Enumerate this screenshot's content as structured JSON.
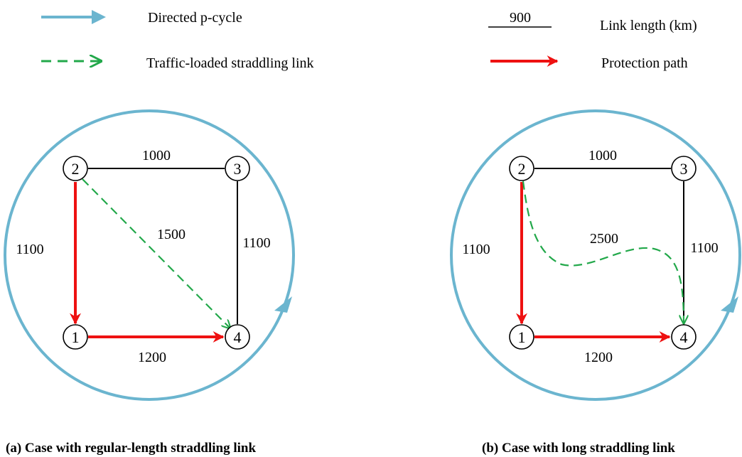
{
  "legend": {
    "p_cycle": "Directed p-cycle",
    "straddling": "Traffic-loaded straddling link",
    "length_sample": "900",
    "length_label": "Link length (km)",
    "protection": "Protection path"
  },
  "colors": {
    "p_cycle": "#6bb5cf",
    "straddling": "#22a84a",
    "protection": "#ee1111",
    "link": "#000000"
  },
  "diagram_a": {
    "nodes": [
      "1",
      "2",
      "3",
      "4"
    ],
    "links": {
      "l_2_3": "1000",
      "l_2_1": "1100",
      "l_3_4": "1100",
      "l_1_4": "1200",
      "l_2_4": "1500"
    },
    "caption": "(a) Case with regular-length straddling link"
  },
  "diagram_b": {
    "nodes": [
      "1",
      "2",
      "3",
      "4"
    ],
    "links": {
      "l_2_3": "1000",
      "l_2_1": "1100",
      "l_3_4": "1100",
      "l_1_4": "1200",
      "l_2_4": "2500"
    },
    "caption": "(b) Case with long straddling link"
  }
}
